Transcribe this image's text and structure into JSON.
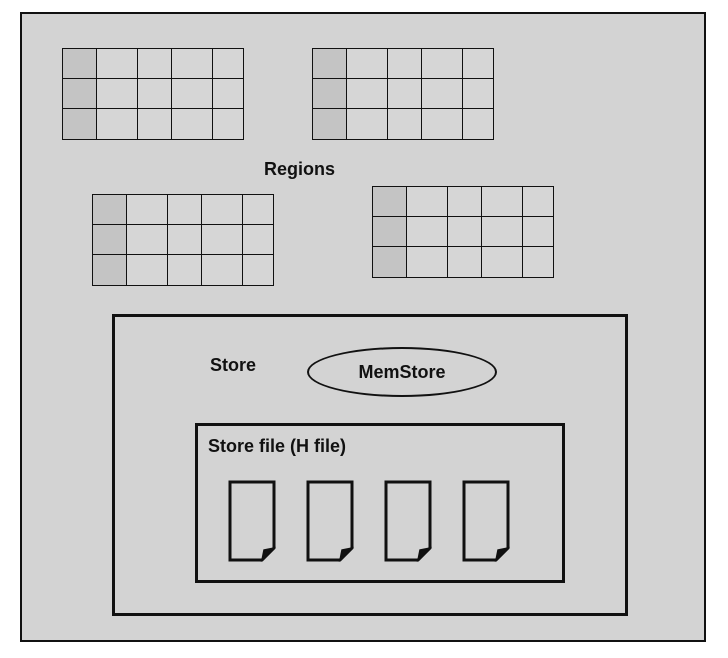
{
  "diagram": {
    "regions_label": "Regions",
    "regions": [
      {
        "rows": 3,
        "cols": 5
      },
      {
        "rows": 3,
        "cols": 5
      },
      {
        "rows": 3,
        "cols": 5
      },
      {
        "rows": 3,
        "cols": 5
      }
    ],
    "store": {
      "label": "Store",
      "memstore_label": "MemStore",
      "store_file_label": "Store file (H file)",
      "file_count": 4
    }
  },
  "colors": {
    "background": "#d3d3d3",
    "border": "#111111",
    "key_column": "#c4c4c4"
  }
}
